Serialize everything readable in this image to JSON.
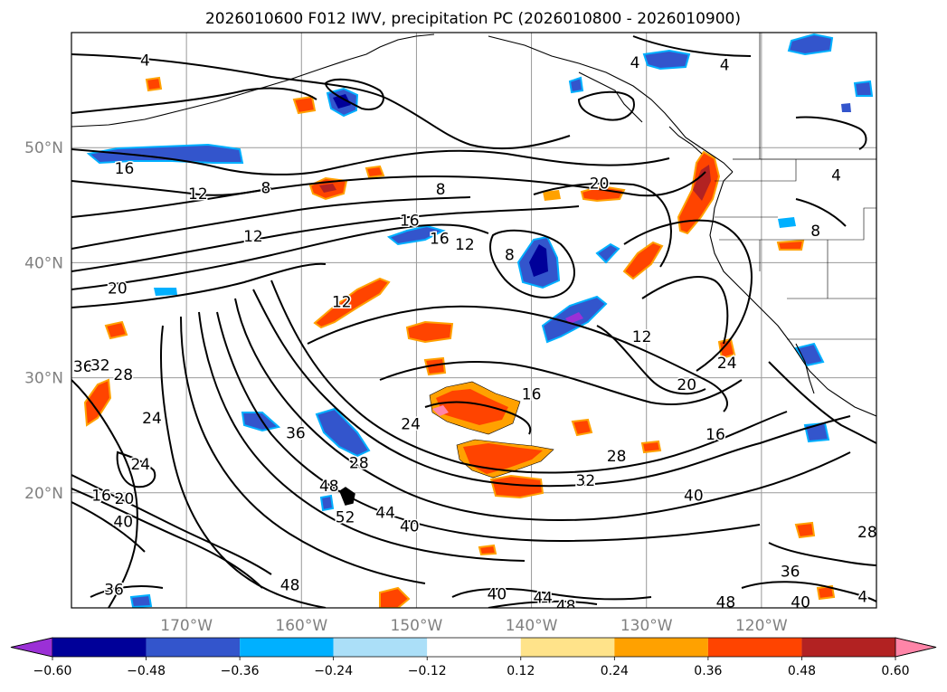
{
  "title": "2026010600 F012 IWV, precipitation PC (2026010800 - 2026010900)",
  "map": {
    "lat_labels": [
      "50°N",
      "40°N",
      "30°N",
      "20°N"
    ],
    "lon_labels": [
      "170°W",
      "160°W",
      "150°W",
      "140°W",
      "130°W",
      "120°W"
    ],
    "extent": {
      "lon_min": -180,
      "lon_max": -110,
      "lat_min": 10,
      "lat_max": 60
    },
    "grid_lons": [
      -170,
      -160,
      -150,
      -140,
      -130,
      -120
    ],
    "grid_lats": [
      20,
      30,
      40,
      50
    ]
  },
  "contour_labels": [
    {
      "text": "4",
      "lon": -173.6,
      "lat": 57.6
    },
    {
      "text": "4",
      "lon": -131.0,
      "lat": 57.4
    },
    {
      "text": "4",
      "lon": -123.2,
      "lat": 57.2
    },
    {
      "text": "16",
      "lon": -175.4,
      "lat": 48.2
    },
    {
      "text": "12",
      "lon": -169.0,
      "lat": 46.0
    },
    {
      "text": "8",
      "lon": -163.1,
      "lat": 46.5
    },
    {
      "text": "8",
      "lon": -147.9,
      "lat": 46.4
    },
    {
      "text": "16",
      "lon": -150.6,
      "lat": 43.7
    },
    {
      "text": "16",
      "lon": -148.0,
      "lat": 42.1
    },
    {
      "text": "12",
      "lon": -145.8,
      "lat": 41.6
    },
    {
      "text": "12",
      "lon": -164.2,
      "lat": 42.3
    },
    {
      "text": "8",
      "lon": -141.9,
      "lat": 40.7
    },
    {
      "text": "20",
      "lon": -176.0,
      "lat": 37.8
    },
    {
      "text": "12",
      "lon": -156.5,
      "lat": 36.6
    },
    {
      "text": "20",
      "lon": -134.1,
      "lat": 46.9
    },
    {
      "text": "4",
      "lon": -113.5,
      "lat": 47.6
    },
    {
      "text": "8",
      "lon": -115.3,
      "lat": 42.8
    },
    {
      "text": "12",
      "lon": -130.4,
      "lat": 33.6
    },
    {
      "text": "16",
      "lon": -140.0,
      "lat": 28.6
    },
    {
      "text": "20",
      "lon": -126.5,
      "lat": 29.4
    },
    {
      "text": "24",
      "lon": -123.0,
      "lat": 31.3
    },
    {
      "text": "16",
      "lon": -124.0,
      "lat": 25.1
    },
    {
      "text": "24",
      "lon": -150.5,
      "lat": 26.0
    },
    {
      "text": "24",
      "lon": -173.0,
      "lat": 26.5
    },
    {
      "text": "36",
      "lon": -179.0,
      "lat": 31.0
    },
    {
      "text": "32",
      "lon": -177.5,
      "lat": 31.1
    },
    {
      "text": "28",
      "lon": -175.5,
      "lat": 30.3
    },
    {
      "text": "36",
      "lon": -160.5,
      "lat": 25.2
    },
    {
      "text": "28",
      "lon": -155.0,
      "lat": 22.6
    },
    {
      "text": "24",
      "lon": -174.0,
      "lat": 22.5
    },
    {
      "text": "16",
      "lon": -177.4,
      "lat": 19.8
    },
    {
      "text": "20",
      "lon": -175.4,
      "lat": 19.5
    },
    {
      "text": "40",
      "lon": -175.5,
      "lat": 17.5
    },
    {
      "text": "48",
      "lon": -157.6,
      "lat": 20.6
    },
    {
      "text": "52",
      "lon": -156.2,
      "lat": 17.9
    },
    {
      "text": "44",
      "lon": -152.7,
      "lat": 18.3
    },
    {
      "text": "40",
      "lon": -150.6,
      "lat": 17.1
    },
    {
      "text": "32",
      "lon": -135.3,
      "lat": 21.1
    },
    {
      "text": "28",
      "lon": -132.6,
      "lat": 23.2
    },
    {
      "text": "40",
      "lon": -125.9,
      "lat": 19.8
    },
    {
      "text": "28",
      "lon": -110.8,
      "lat": 16.6
    },
    {
      "text": "36",
      "lon": -176.3,
      "lat": 11.6
    },
    {
      "text": "48",
      "lon": -161.0,
      "lat": 12.0
    },
    {
      "text": "40",
      "lon": -143.0,
      "lat": 11.2
    },
    {
      "text": "44",
      "lon": -139.0,
      "lat": 10.9
    },
    {
      "text": "48",
      "lon": -137.0,
      "lat": 10.2
    },
    {
      "text": "36",
      "lon": -117.5,
      "lat": 13.2
    },
    {
      "text": "48",
      "lon": -123.1,
      "lat": 10.5
    },
    {
      "text": "40",
      "lon": -116.6,
      "lat": 10.5
    },
    {
      "text": "4",
      "lon": -111.2,
      "lat": 11.0
    }
  ],
  "colorbar": {
    "boundaries": [
      -0.72,
      -0.6,
      -0.48,
      -0.36,
      -0.24,
      -0.12,
      0.12,
      0.24,
      0.36,
      0.48,
      0.6,
      0.72
    ],
    "colors": [
      "#9b30d6",
      "#000099",
      "#3355cc",
      "#00b0ff",
      "#abdff8",
      "#ffffff",
      "#ffe38a",
      "#ffa100",
      "#ff4400",
      "#b22222",
      "#ff85a8"
    ],
    "labels": [
      "−0.60",
      "−0.48",
      "−0.36",
      "−0.24",
      "−0.12",
      "0.12",
      "0.24",
      "0.36",
      "0.48",
      "0.60"
    ],
    "extend": "both"
  },
  "colors": {
    "contour": "#000000",
    "coast": "#000000",
    "grid": "#999999",
    "label_gray": "#808080",
    "positive_fill": "#ff4400",
    "negative_fill": "#3355cc"
  }
}
